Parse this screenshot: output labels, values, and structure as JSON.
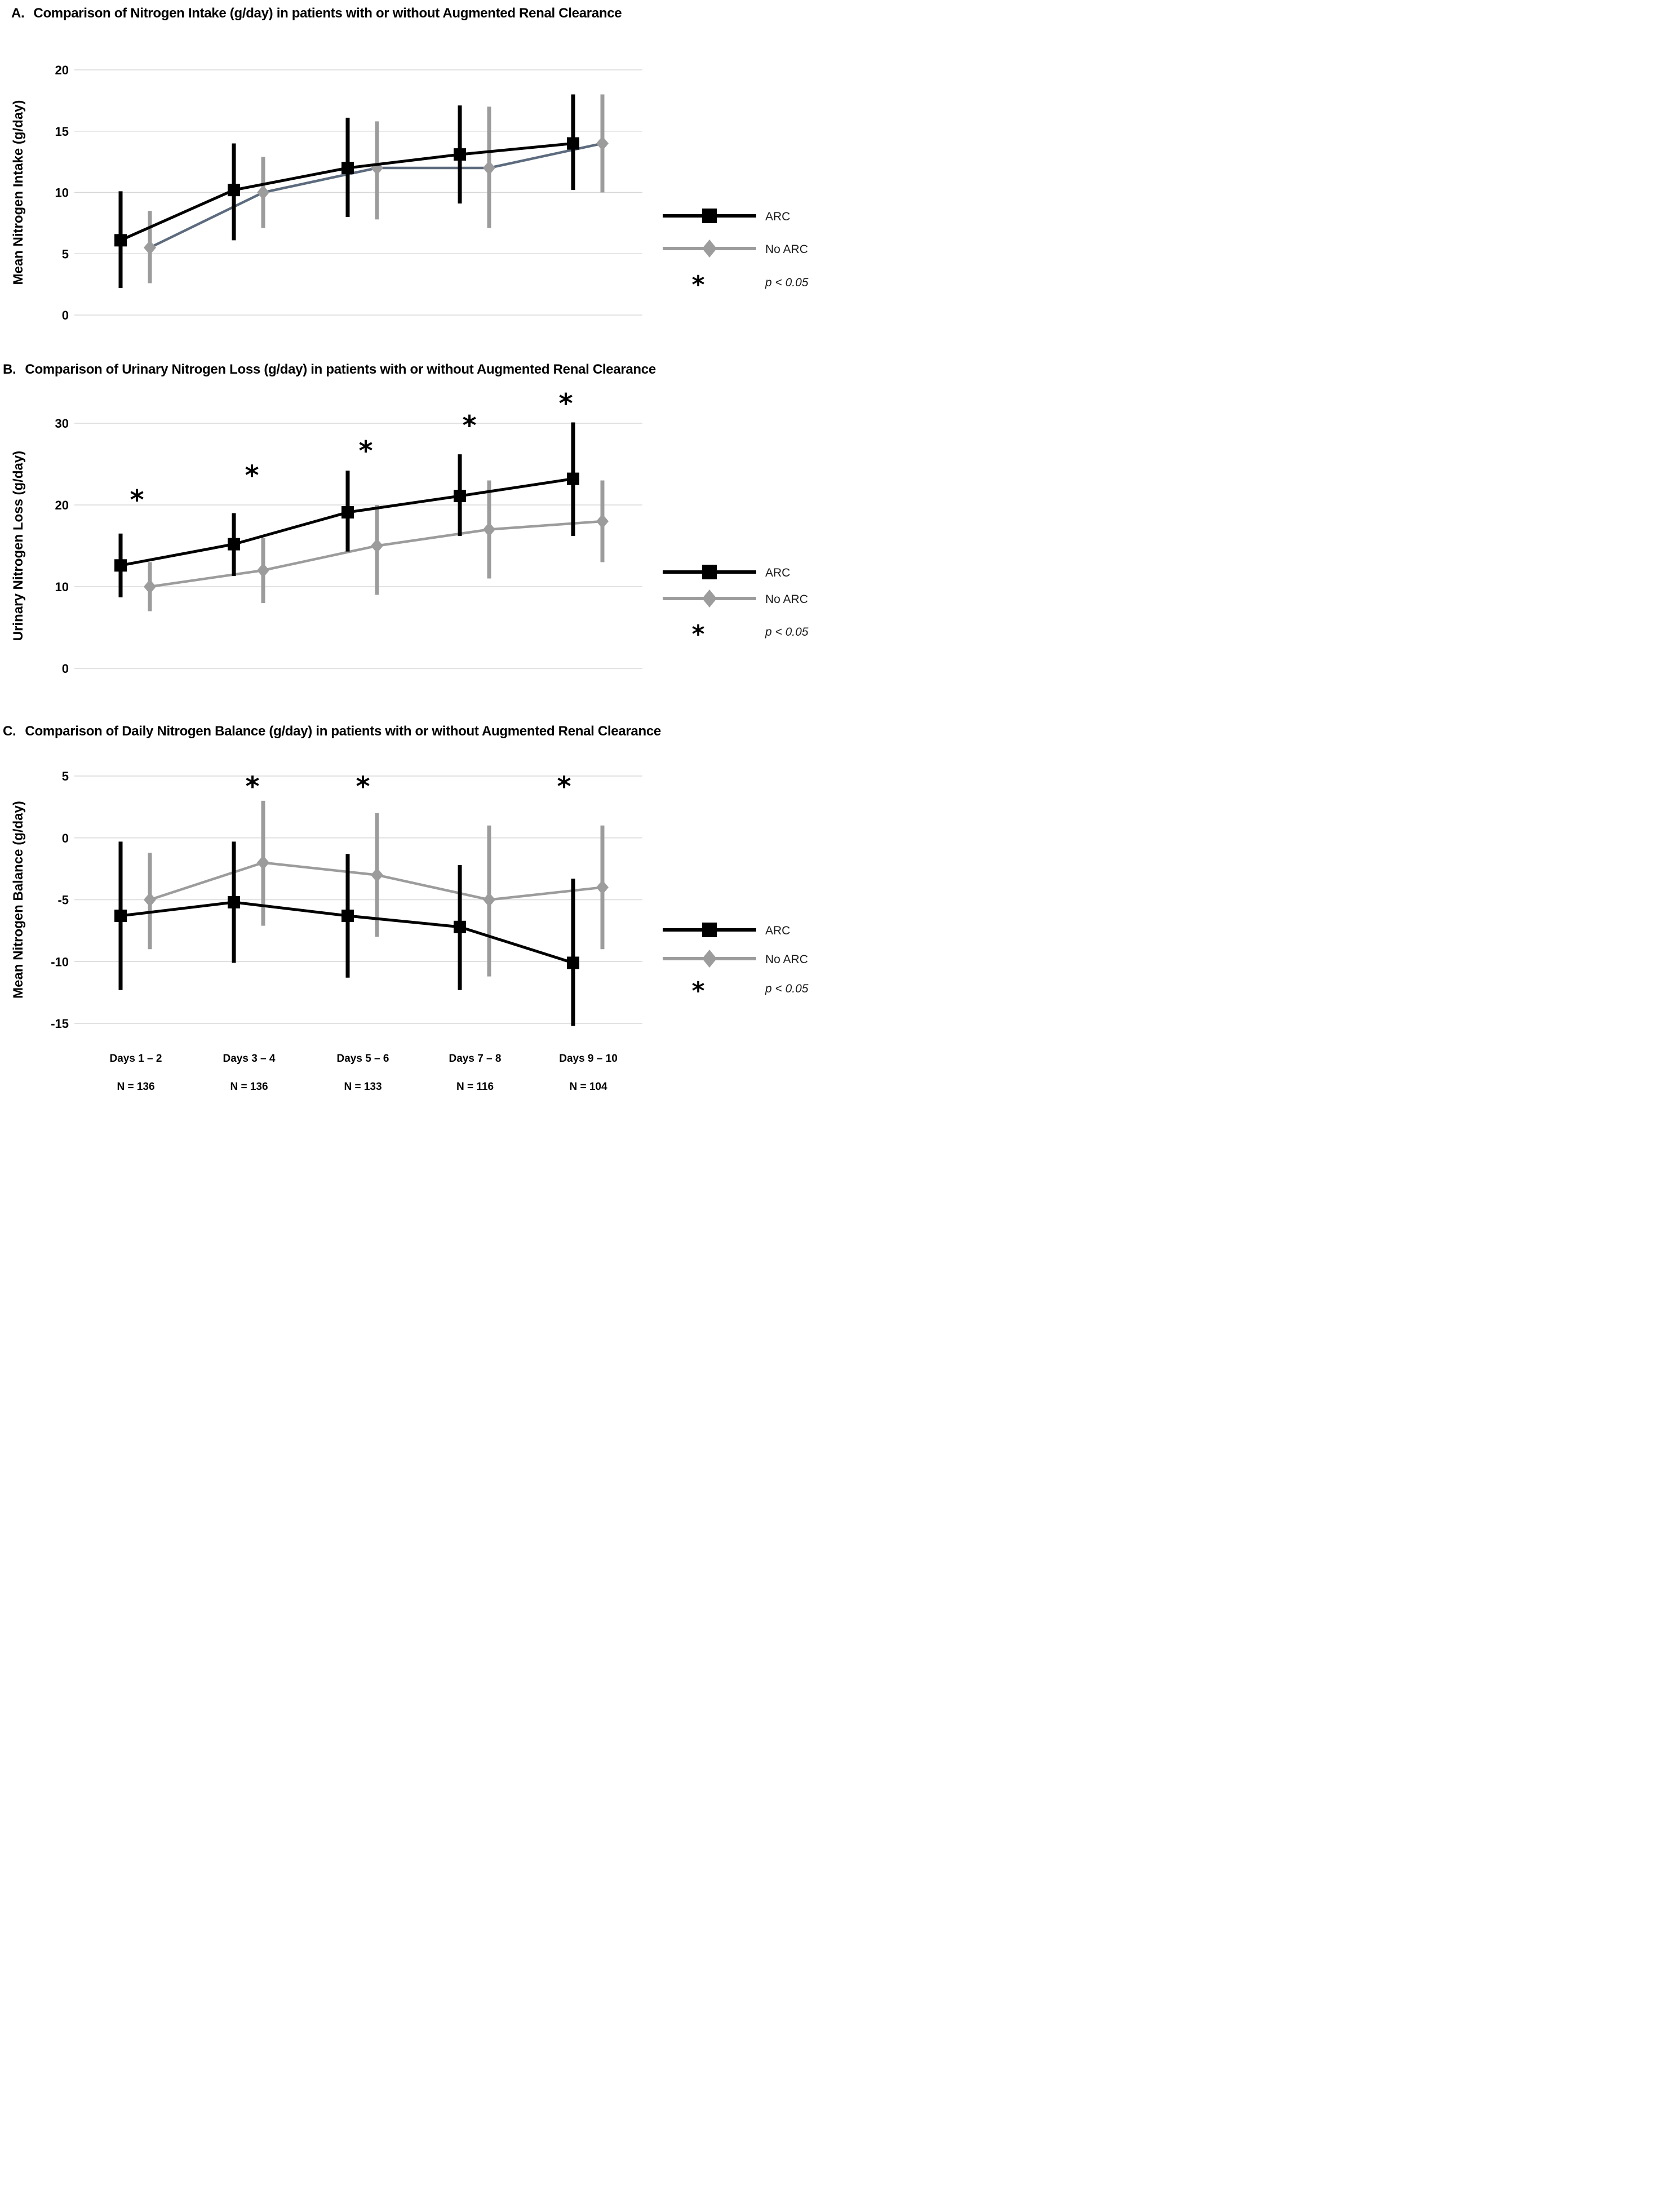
{
  "figure": {
    "legend": {
      "entries": [
        {
          "label": "ARC",
          "marker": "square"
        },
        {
          "label": "No ARC",
          "marker": "diamond"
        }
      ],
      "sig_symbol": "*",
      "sig_label": "p < 0.05"
    },
    "colors": {
      "arc": "#000000",
      "no_arc": "#9c9c9c",
      "no_arc_line_panel_a": "#5c6b7d",
      "gridline": "#d8d8d8",
      "text": "#000000"
    }
  },
  "x_axis": {
    "categories": [
      "Days 1 – 2",
      "Days 3 – 4",
      "Days 5 – 6",
      "Days 7 – 8",
      "Days 9 – 10"
    ],
    "n_labels": [
      "N = 136",
      "N = 136",
      "N = 133",
      "N = 116",
      "N = 104"
    ]
  },
  "chart_data": [
    {
      "panel": "A",
      "type": "line",
      "title_label": "A.",
      "title_text": "Comparison of Nitrogen Intake (g/day) in patients with or without Augmented Renal Clearance",
      "ylabel": "Mean Nitrogen Intake (g/day)",
      "ylim": [
        0,
        20
      ],
      "yticks": [
        20,
        15,
        10,
        5,
        0
      ],
      "grid": true,
      "legend_position": "right",
      "categories": [
        "Days 1 – 2",
        "Days 3 – 4",
        "Days 5 – 6",
        "Days 7 – 8",
        "Days 9 – 10"
      ],
      "series": [
        {
          "name": "ARC",
          "values": [
            6.1,
            10.2,
            12.0,
            13.1,
            14.0
          ],
          "err_low": [
            2.2,
            6.1,
            8.0,
            9.1,
            10.2
          ],
          "err_high": [
            10.1,
            14.0,
            16.1,
            17.1,
            18.0
          ]
        },
        {
          "name": "No ARC",
          "values": [
            5.5,
            10.0,
            12.0,
            12.0,
            14.0
          ],
          "err_low": [
            2.6,
            7.1,
            7.8,
            7.1,
            10.0
          ],
          "err_high": [
            8.5,
            12.9,
            15.8,
            17.0,
            18.0
          ]
        }
      ],
      "sig_markers": []
    },
    {
      "panel": "B",
      "type": "line",
      "title_label": "B.",
      "title_text": "Comparison of Urinary Nitrogen Loss (g/day) in patients with or without Augmented Renal Clearance",
      "ylabel": "Urinary Nitrogen Loss (g/day)",
      "ylim": [
        0,
        30
      ],
      "yticks": [
        30,
        20,
        10,
        0
      ],
      "grid": true,
      "legend_position": "right",
      "categories": [
        "Days 1 – 2",
        "Days 3 – 4",
        "Days 5 – 6",
        "Days 7 – 8",
        "Days 9 – 10"
      ],
      "series": [
        {
          "name": "ARC",
          "values": [
            12.6,
            15.2,
            19.1,
            21.1,
            23.2
          ],
          "err_low": [
            8.7,
            11.3,
            14.3,
            16.2,
            16.2
          ],
          "err_high": [
            16.5,
            19.0,
            24.2,
            26.2,
            30.1
          ]
        },
        {
          "name": "No ARC",
          "values": [
            10.0,
            12.0,
            15.0,
            17.0,
            18.0
          ],
          "err_low": [
            7.0,
            8.0,
            9.0,
            11.0,
            13.0
          ],
          "err_high": [
            13.0,
            16.0,
            20.0,
            23.0,
            23.0
          ]
        }
      ],
      "sig_markers": [
        {
          "category_index": 0,
          "y": 21.0
        },
        {
          "category_index": 1,
          "y": 24.0
        },
        {
          "category_index": 2,
          "y": 27.0
        },
        {
          "category_index": 3,
          "y": 30.1
        },
        {
          "category_index": 4,
          "y": 32.8
        }
      ]
    },
    {
      "panel": "C",
      "type": "line",
      "title_label": "C.",
      "title_text": "Comparison of Daily Nitrogen Balance (g/day) in patients with or without Augmented Renal Clearance",
      "ylabel": "Mean Nitrogen Balance (g/day)",
      "ylim": [
        -15,
        5
      ],
      "yticks": [
        5,
        0,
        -5,
        -10,
        -15
      ],
      "grid": true,
      "legend_position": "right",
      "categories": [
        "Days 1 – 2",
        "Days 3 – 4",
        "Days 5 – 6",
        "Days 7 – 8",
        "Days 9 – 10"
      ],
      "series": [
        {
          "name": "ARC",
          "values": [
            -6.3,
            -5.2,
            -6.3,
            -7.2,
            -10.1
          ],
          "err_low": [
            -12.3,
            -10.1,
            -11.3,
            -12.3,
            -15.2
          ],
          "err_high": [
            -0.3,
            -0.3,
            -1.3,
            -2.2,
            -3.3
          ]
        },
        {
          "name": "No ARC",
          "values": [
            -5.0,
            -2.0,
            -3.0,
            -5.0,
            -4.0
          ],
          "err_low": [
            -9.0,
            -7.1,
            -8.0,
            -11.2,
            -9.0
          ],
          "err_high": [
            -1.2,
            3.0,
            2.0,
            1.0,
            1.0
          ]
        }
      ],
      "sig_markers": [
        {
          "category_index": 1,
          "y": 4.4
        },
        {
          "category_index": 2,
          "y": 4.4
        },
        {
          "category_index": 4,
          "y": 4.4
        }
      ]
    }
  ]
}
